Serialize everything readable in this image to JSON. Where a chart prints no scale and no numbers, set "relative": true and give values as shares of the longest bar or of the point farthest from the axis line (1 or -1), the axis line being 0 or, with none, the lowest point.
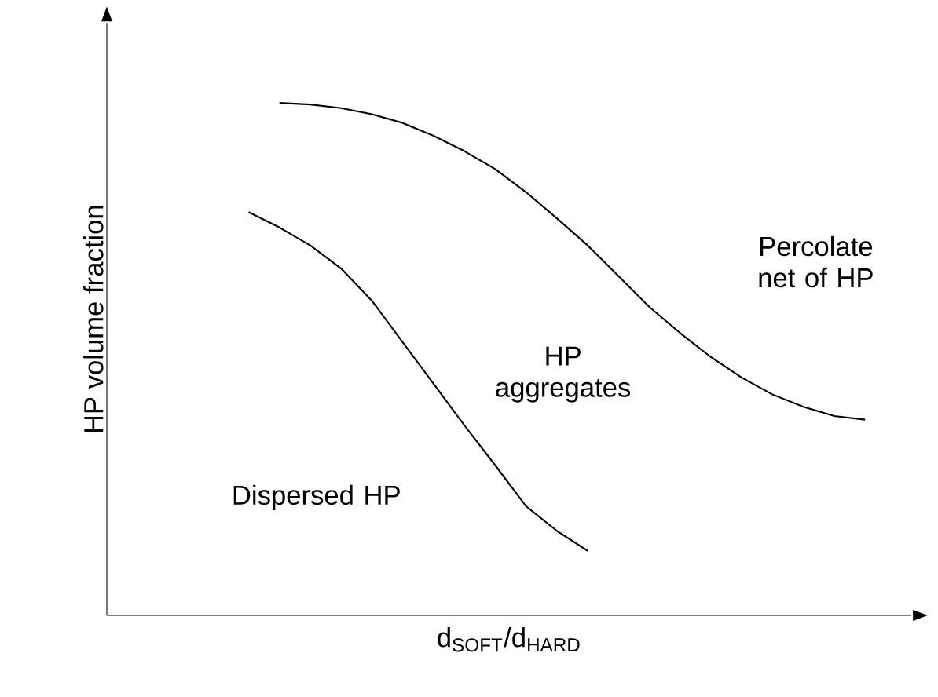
{
  "chart_data": {
    "type": "line",
    "relative": true,
    "xlabel": "d$_{SOFT}$/d$_{HARD}$",
    "ylabel": "HP volume fraction",
    "marker": "none",
    "line_style": "solid",
    "categories": [
      null,
      null,
      null,
      null,
      null,
      null,
      null,
      null,
      null,
      null,
      null,
      null,
      null,
      null,
      null,
      null,
      null,
      null,
      null,
      null,
      null,
      null
    ],
    "series": [
      {
        "color": "#000000",
        "values": [
          null,
          1.0,
          0.997,
          0.99,
          0.978,
          0.961,
          0.936,
          0.906,
          0.871,
          0.826,
          0.775,
          0.722,
          0.662,
          0.602,
          0.551,
          0.504,
          0.464,
          0.431,
          0.407,
          0.389,
          0.382,
          null
        ]
      },
      {
        "color": "#000000",
        "values": [
          0.787,
          0.757,
          0.722,
          0.677,
          0.614,
          0.533,
          0.452,
          0.371,
          0.293,
          0.213,
          0.165,
          0.126,
          null,
          null,
          null,
          null,
          null,
          null,
          null,
          null,
          null,
          null
        ]
      }
    ],
    "annotations": [
      "Percolate net of HP",
      "HP aggregates",
      "Dispersed HP"
    ]
  }
}
